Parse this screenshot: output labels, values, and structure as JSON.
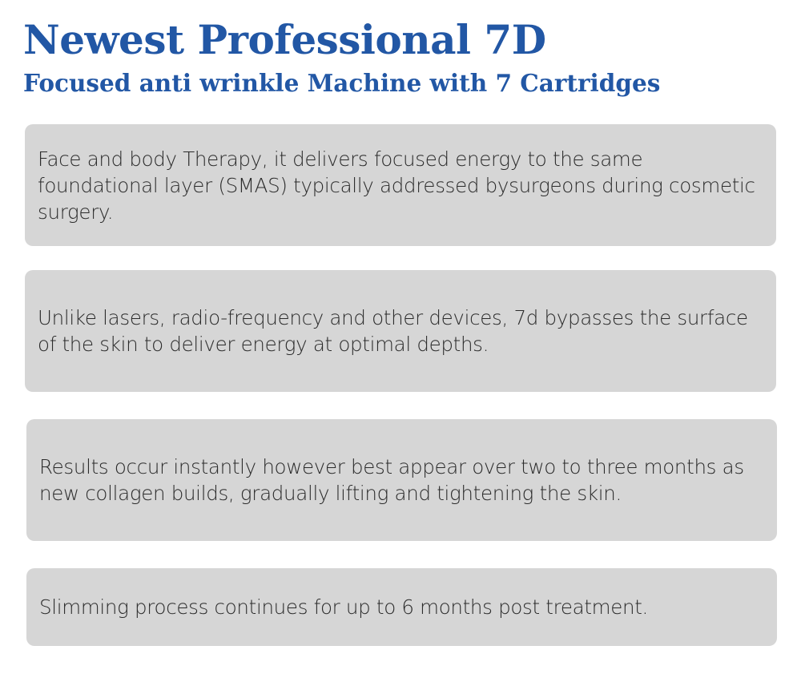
{
  "header": {
    "title": "Newest Professional 7D",
    "subtitle": "Focused anti wrinkle Machine with 7 Cartridges"
  },
  "cards": [
    {
      "text": "Face and body Therapy, it delivers focused energy to the same foundational layer (SMAS) typically addressed bysurgeons during cosmetic surgery."
    },
    {
      "text": "Unlike lasers, radio-frequency and other devices, 7d bypasses the surface of the skin to deliver energy at optimal depths."
    },
    {
      "text": "Results occur instantly however best appear over two to three months as new collagen builds, gradually lifting and tightening the skin."
    },
    {
      "text": "Slimming process continues for up to 6 months post treatment."
    }
  ],
  "colors": {
    "title": "#2257a5",
    "card_background": "#d6d6d6",
    "text": "#2b2b2b"
  }
}
